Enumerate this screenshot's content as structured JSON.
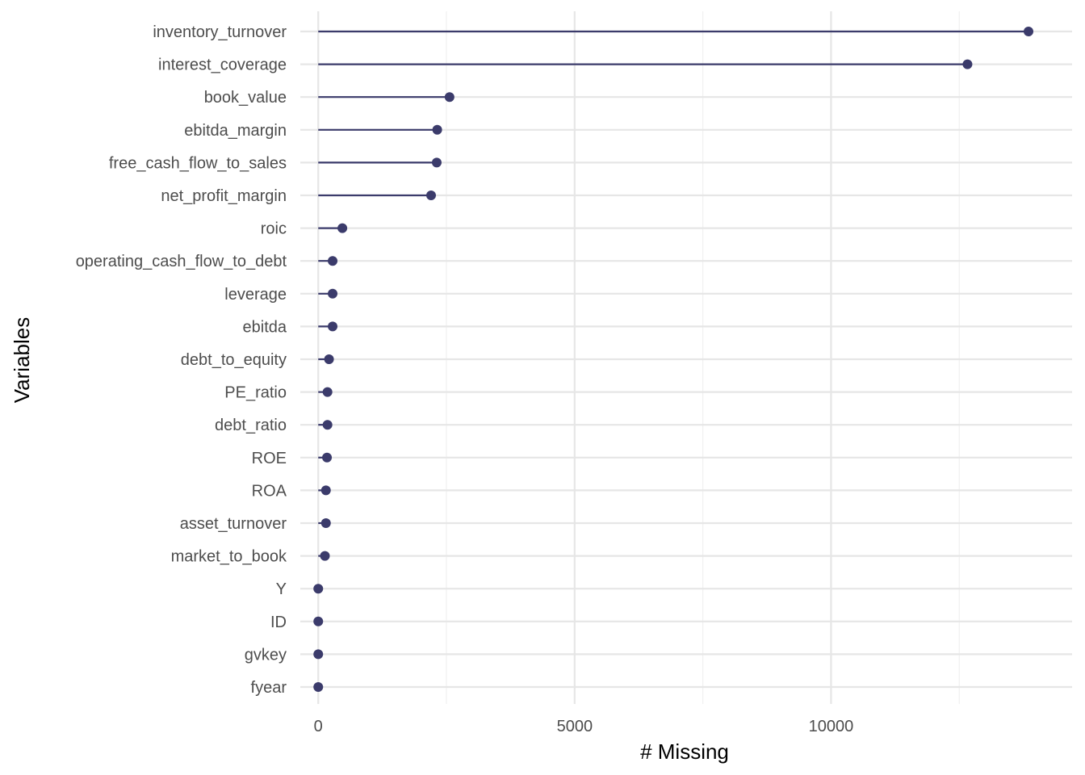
{
  "chart_data": {
    "type": "lollipop",
    "title": "",
    "xlabel": "# Missing",
    "ylabel": "Variables",
    "xlim": [
      -350,
      14700
    ],
    "x_ticks": [
      0,
      5000,
      10000
    ],
    "x_minor_ticks": [
      2500,
      7500,
      12500
    ],
    "grid": true,
    "categories": [
      "inventory_turnover",
      "interest_coverage",
      "book_value",
      "ebitda_margin",
      "free_cash_flow_to_sales",
      "net_profit_margin",
      "roic",
      "operating_cash_flow_to_debt",
      "leverage",
      "ebitda",
      "debt_to_equity",
      "PE_ratio",
      "debt_ratio",
      "ROE",
      "ROA",
      "asset_turnover",
      "market_to_book",
      "Y",
      "ID",
      "gvkey",
      "fyear"
    ],
    "values": [
      13850,
      12660,
      2560,
      2320,
      2310,
      2200,
      470,
      280,
      280,
      280,
      210,
      180,
      180,
      170,
      150,
      150,
      130,
      0,
      0,
      0,
      0
    ],
    "colors": {
      "mark": "#3b3b6b",
      "grid_major": "#e6e6e6",
      "grid_minor": "#f0f0f0"
    }
  }
}
